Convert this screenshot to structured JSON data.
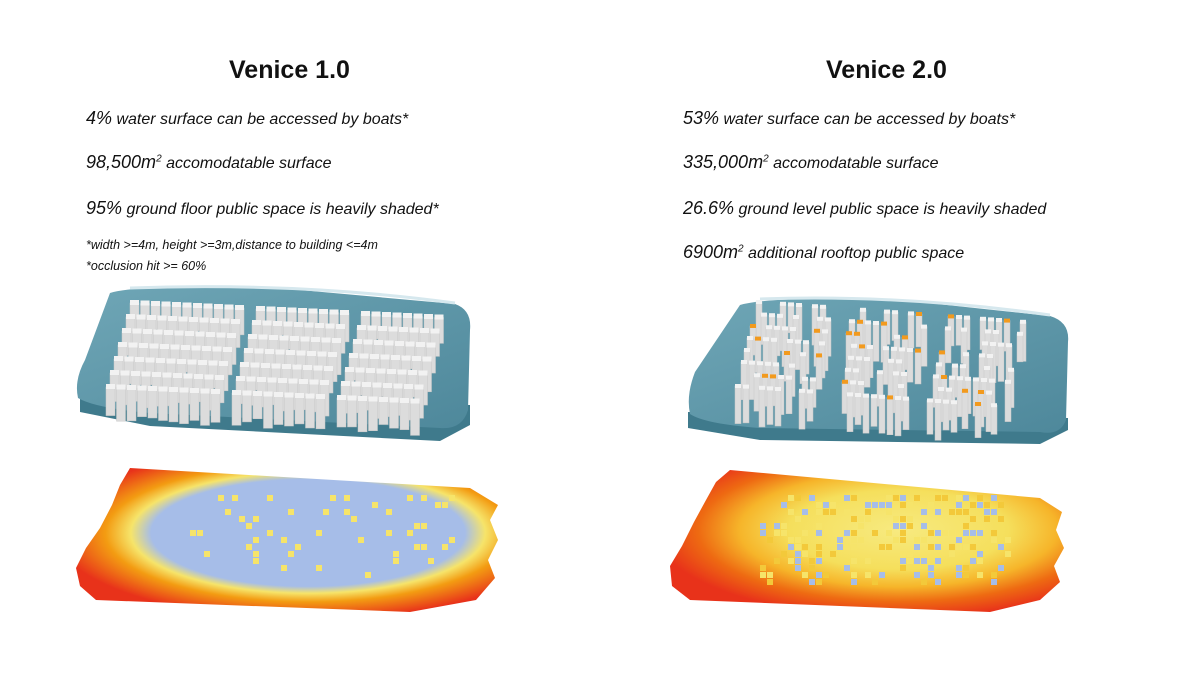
{
  "panels": [
    {
      "title": "Venice 1.0",
      "stats": [
        {
          "value": "4%",
          "text": " water surface can be accessed by boats*"
        },
        {
          "value": "98,500m",
          "sup": "2",
          "text": " accomodatable surface"
        },
        {
          "value": "95%",
          "text": " ground floor public space is heavily shaded*"
        }
      ],
      "notes": [
        "*width >=4m, height >=3m,distance to building <=4m",
        "*occlusion hit >= 60%"
      ]
    },
    {
      "title": "Venice 2.0",
      "stats": [
        {
          "value": "53%",
          "text": " water surface can be accessed by boats*"
        },
        {
          "value": "335,000m",
          "sup": "2",
          "text": " accomodatable surface"
        },
        {
          "value": "26.6%",
          "text": " ground level public space is heavily shaded"
        },
        {
          "value": "6900m",
          "sup": "2",
          "text": " additional rooftop public space"
        }
      ]
    }
  ],
  "colors": {
    "water_top": "#5d96a8",
    "water_side": "#3f7a8c",
    "building": "#f2f2f2",
    "rooftop": "#f29a1e",
    "heat_edge": "#e8321a",
    "heat_mid": "#f39c12",
    "heat_warm": "#f6e46a",
    "heat_cool": "#a6bde8"
  }
}
